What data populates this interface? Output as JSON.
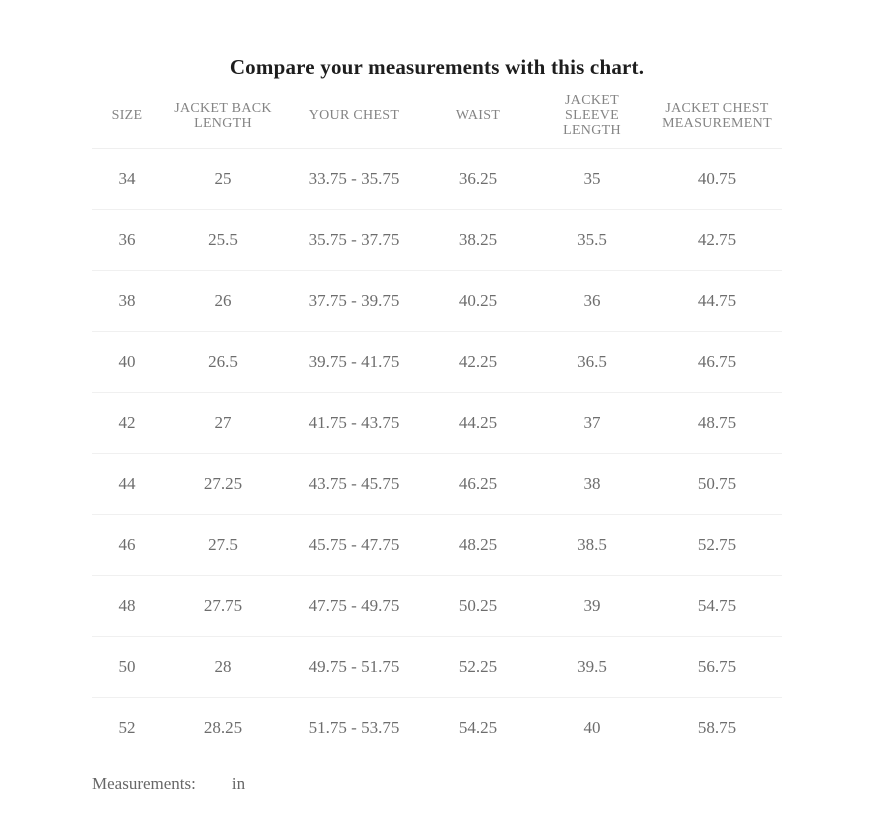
{
  "title": "Compare your measurements with this chart.",
  "chart_data": {
    "type": "table",
    "title": "Compare your measurements with this chart.",
    "columns": [
      "SIZE",
      "JACKET BACK LENGTH",
      "YOUR CHEST",
      "WAIST",
      "JACKET SLEEVE LENGTH",
      "JACKET CHEST MEASUREMENT"
    ],
    "rows": [
      [
        "34",
        "25",
        "33.75 - 35.75",
        "36.25",
        "35",
        "40.75"
      ],
      [
        "36",
        "25.5",
        "35.75 - 37.75",
        "38.25",
        "35.5",
        "42.75"
      ],
      [
        "38",
        "26",
        "37.75 - 39.75",
        "40.25",
        "36",
        "44.75"
      ],
      [
        "40",
        "26.5",
        "39.75 - 41.75",
        "42.25",
        "36.5",
        "46.75"
      ],
      [
        "42",
        "27",
        "41.75 - 43.75",
        "44.25",
        "37",
        "48.75"
      ],
      [
        "44",
        "27.25",
        "43.75 - 45.75",
        "46.25",
        "38",
        "50.75"
      ],
      [
        "46",
        "27.5",
        "45.75 - 47.75",
        "48.25",
        "38.5",
        "52.75"
      ],
      [
        "48",
        "27.75",
        "47.75 - 49.75",
        "50.25",
        "39",
        "54.75"
      ],
      [
        "50",
        "28",
        "49.75 - 51.75",
        "52.25",
        "39.5",
        "56.75"
      ],
      [
        "52",
        "28.25",
        "51.75 - 53.75",
        "54.25",
        "40",
        "58.75"
      ]
    ],
    "units": "in"
  },
  "footer": {
    "label": "Measurements:",
    "unit": "in"
  },
  "colors": {
    "background": "#ffffff",
    "title_text": "#1d1d1d",
    "header_text": "#848484",
    "cell_text": "#6d6d6d",
    "divider": "#efefef"
  }
}
